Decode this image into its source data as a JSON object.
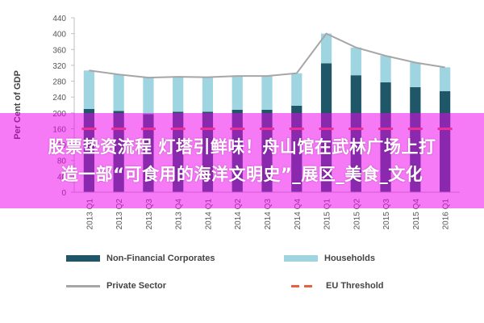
{
  "chart_data": {
    "type": "bar",
    "stacked": true,
    "ylabel": "Per Cent of GDP",
    "ylim": [
      0,
      440
    ],
    "yticks": [
      0,
      40,
      80,
      120,
      160,
      200,
      240,
      280,
      320,
      360,
      400,
      440
    ],
    "grid": false,
    "legend_position": "bottom",
    "categories": [
      "2013 Q1",
      "2013 Q2",
      "2013 Q3",
      "2013 Q4",
      "2014 Q1",
      "2014 Q2",
      "2014 Q3",
      "2014 Q4",
      "2015 Q1",
      "2015 Q2",
      "2015 Q3",
      "2015 Q4",
      "2016 Q1"
    ],
    "series": [
      {
        "name": "Non-Financial Corporates",
        "kind": "bar",
        "color": "#1f5668",
        "values": [
          210,
          205,
          197,
          203,
          203,
          208,
          208,
          218,
          325,
          295,
          277,
          265,
          255
        ]
      },
      {
        "name": "Households",
        "kind": "bar",
        "color": "#9fd4e1",
        "values": [
          97,
          92,
          92,
          88,
          87,
          85,
          85,
          82,
          75,
          70,
          67,
          62,
          60
        ]
      },
      {
        "name": "Private Sector",
        "kind": "line",
        "color": "#a6a6a6",
        "values": [
          307,
          297,
          289,
          291,
          290,
          293,
          293,
          300,
          400,
          365,
          344,
          327,
          315
        ]
      },
      {
        "name": "EU Threshold",
        "kind": "dash",
        "color": "#e8603c",
        "values": [
          160,
          160,
          160,
          160,
          160,
          160,
          160,
          160,
          160,
          160,
          160,
          160,
          160
        ]
      }
    ]
  },
  "overlay": {
    "line1": "股票垫资流程 灯塔引鲜味！舟山馆在武林广场上打",
    "line2": "造一部“可食用的海洋文明史”_展区_美食_文化"
  }
}
